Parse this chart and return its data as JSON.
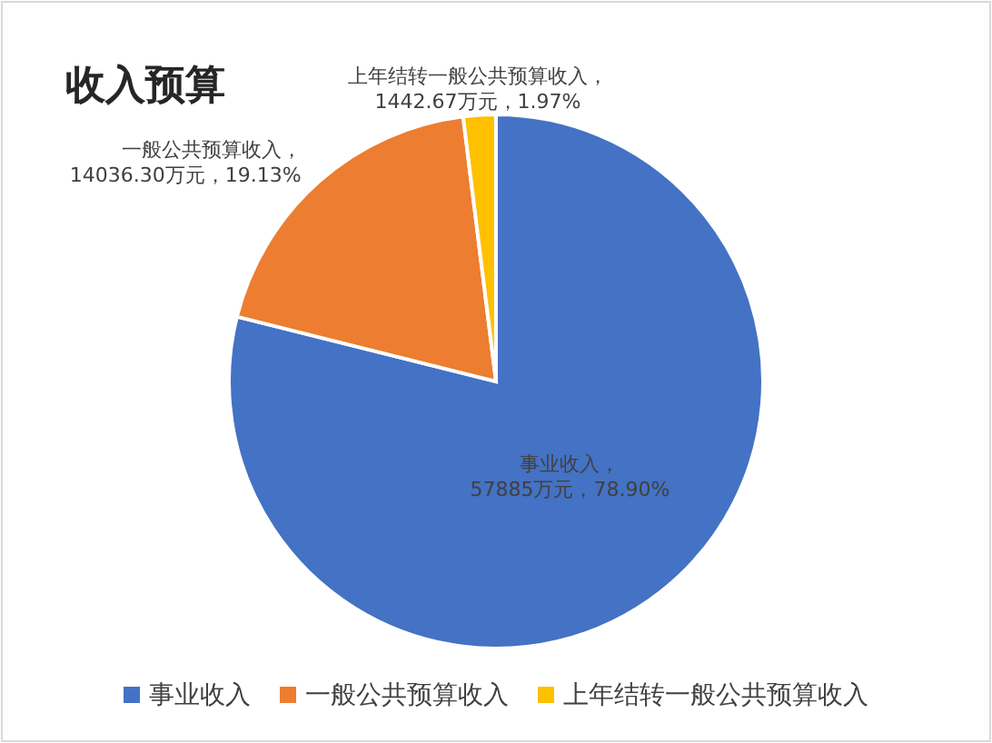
{
  "chart_data": {
    "type": "pie",
    "title": "收入预算",
    "categories": [
      "事业收入",
      "一般公共预算收入",
      "上年结转一般公共预算收入"
    ],
    "values": [
      57885,
      14036.3,
      1442.67
    ],
    "colors": [
      "#4472c4",
      "#ed7d31",
      "#ffc000"
    ],
    "value_labels": [
      "事业收入，\n57885万元，78.90%",
      "一般公共预算收入，\n14036.30万元，19.13%",
      "上年结转一般公共预算收入，\n1442.67万元，1.97%"
    ],
    "legend": "bottom"
  }
}
